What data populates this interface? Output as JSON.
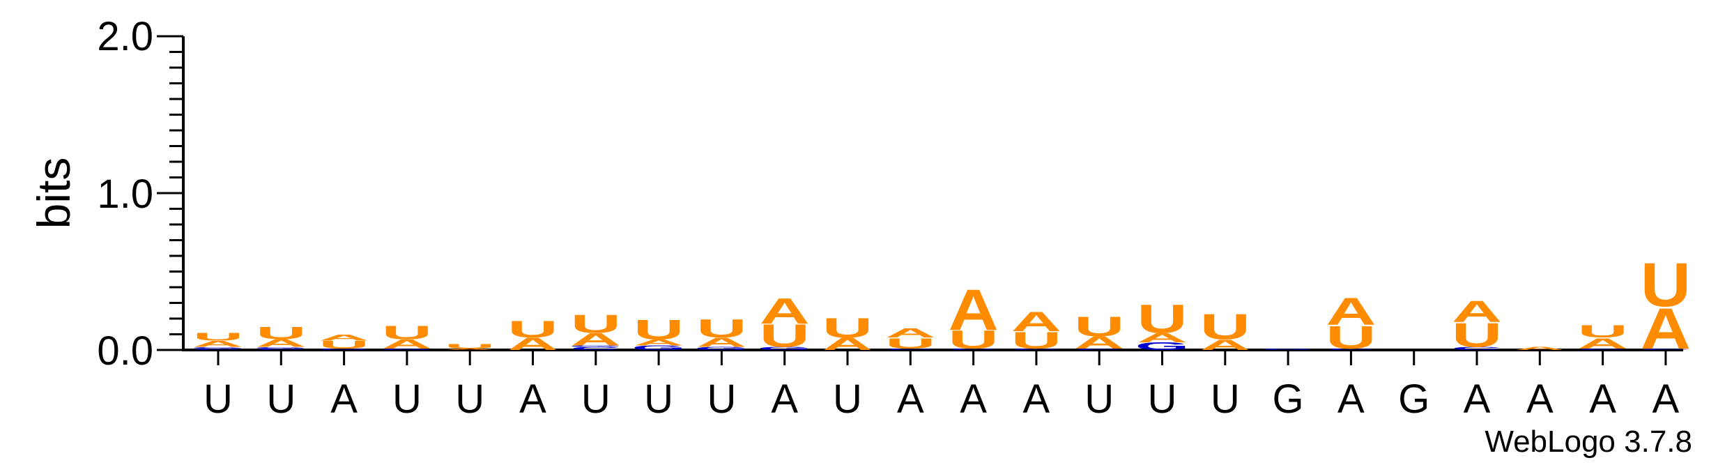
{
  "chart_data": {
    "type": "sequence-logo",
    "ylabel": "bits",
    "ylim": [
      0,
      2
    ],
    "yticks": [
      "0.0",
      "1.0",
      "2.0"
    ],
    "xticklabels": [
      "U",
      "U",
      "A",
      "U",
      "U",
      "A",
      "U",
      "U",
      "U",
      "A",
      "U",
      "A",
      "A",
      "A",
      "U",
      "U",
      "U",
      "G",
      "A",
      "G",
      "A",
      "A",
      "A",
      "A"
    ],
    "credit": "WebLogo 3.7.8",
    "colors": {
      "A": "#ff8c00",
      "U": "#ff8c00",
      "C": "#0000cc",
      "G": "#0000cc"
    },
    "positions": [
      {
        "stack": [
          [
            "C",
            0.01
          ],
          [
            "G",
            0.01
          ],
          [
            "A",
            0.04
          ],
          [
            "U",
            0.05
          ]
        ]
      },
      {
        "stack": [
          [
            "C",
            0.01
          ],
          [
            "G",
            0.01
          ],
          [
            "A",
            0.05
          ],
          [
            "U",
            0.08
          ]
        ]
      },
      {
        "stack": [
          [
            "G",
            0.01
          ],
          [
            "U",
            0.05
          ],
          [
            "A",
            0.04
          ]
        ]
      },
      {
        "stack": [
          [
            "G",
            0.01
          ],
          [
            "A",
            0.06
          ],
          [
            "U",
            0.09
          ]
        ]
      },
      {
        "stack": [
          [
            "A",
            0.01
          ],
          [
            "U",
            0.03
          ]
        ]
      },
      {
        "stack": [
          [
            "A",
            0.08
          ],
          [
            "U",
            0.11
          ]
        ]
      },
      {
        "stack": [
          [
            "C",
            0.02
          ],
          [
            "G",
            0.01
          ],
          [
            "A",
            0.08
          ],
          [
            "U",
            0.12
          ]
        ]
      },
      {
        "stack": [
          [
            "G",
            0.03
          ],
          [
            "A",
            0.04
          ],
          [
            "U",
            0.13
          ]
        ]
      },
      {
        "stack": [
          [
            "G",
            0.02
          ],
          [
            "A",
            0.06
          ],
          [
            "U",
            0.12
          ]
        ]
      },
      {
        "stack": [
          [
            "G",
            0.02
          ],
          [
            "U",
            0.15
          ],
          [
            "A",
            0.17
          ]
        ]
      },
      {
        "stack": [
          [
            "A",
            0.08
          ],
          [
            "U",
            0.13
          ]
        ]
      },
      {
        "stack": [
          [
            "C",
            0.01
          ],
          [
            "U",
            0.07
          ],
          [
            "A",
            0.06
          ]
        ]
      },
      {
        "stack": [
          [
            "C",
            0.01
          ],
          [
            "U",
            0.12
          ],
          [
            "A",
            0.27
          ]
        ]
      },
      {
        "stack": [
          [
            "C",
            0.01
          ],
          [
            "U",
            0.11
          ],
          [
            "A",
            0.13
          ]
        ]
      },
      {
        "stack": [
          [
            "C",
            0.01
          ],
          [
            "A",
            0.08
          ],
          [
            "U",
            0.13
          ]
        ]
      },
      {
        "stack": [
          [
            "G",
            0.05
          ],
          [
            "A",
            0.06
          ],
          [
            "U",
            0.19
          ]
        ]
      },
      {
        "stack": [
          [
            "A",
            0.07
          ],
          [
            "U",
            0.17
          ]
        ]
      },
      {
        "stack": [
          [
            "G",
            0.01
          ]
        ]
      },
      {
        "stack": [
          [
            "C",
            0.01
          ],
          [
            "U",
            0.15
          ],
          [
            "A",
            0.18
          ]
        ]
      },
      {
        "stack": []
      },
      {
        "stack": [
          [
            "C",
            0.02
          ],
          [
            "U",
            0.16
          ],
          [
            "A",
            0.14
          ]
        ]
      },
      {
        "stack": [
          [
            "A",
            0.02
          ]
        ]
      },
      {
        "stack": [
          [
            "C",
            0.01
          ],
          [
            "A",
            0.07
          ],
          [
            "U",
            0.08
          ]
        ]
      },
      {
        "stack": [
          [
            "C",
            0.01
          ],
          [
            "A",
            0.27
          ],
          [
            "U",
            0.29
          ]
        ]
      }
    ]
  }
}
